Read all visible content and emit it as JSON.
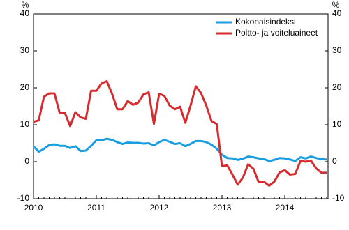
{
  "chart_data": {
    "type": "line",
    "y_label": "%",
    "y2_label": "%",
    "categories": [
      "2010",
      null,
      null,
      null,
      null,
      null,
      null,
      null,
      null,
      null,
      null,
      null,
      "2011",
      null,
      null,
      null,
      null,
      null,
      null,
      null,
      null,
      null,
      null,
      null,
      "2012",
      null,
      null,
      null,
      null,
      null,
      null,
      null,
      null,
      null,
      null,
      null,
      "2013",
      null,
      null,
      null,
      null,
      null,
      null,
      null,
      null,
      null,
      null,
      null,
      "2014",
      null,
      null,
      null,
      null,
      null,
      null,
      null,
      null
    ],
    "series": [
      {
        "name": "Kokonaisindeksi",
        "color": "#1a9ee0",
        "values": [
          4.2,
          2.7,
          3.5,
          4.5,
          4.7,
          4.3,
          4.3,
          3.7,
          4.2,
          2.9,
          3.0,
          4.3,
          5.8,
          5.8,
          6.2,
          5.9,
          5.3,
          4.8,
          5.2,
          5.1,
          5.1,
          4.9,
          5.0,
          4.4,
          5.3,
          5.9,
          5.4,
          4.8,
          5.0,
          4.2,
          4.8,
          5.6,
          5.6,
          5.3,
          4.6,
          3.5,
          1.9,
          1.0,
          0.9,
          0.5,
          0.8,
          1.4,
          1.2,
          0.9,
          0.7,
          0.2,
          0.5,
          1.0,
          0.9,
          0.6,
          0.2,
          1.2,
          0.9,
          1.4,
          1.0,
          0.7,
          0.6
        ]
      },
      {
        "name": "Poltto- ja voiteluaineet",
        "color": "#d62b2f",
        "values": [
          10.8,
          11.2,
          17.6,
          18.5,
          18.5,
          13.2,
          13.2,
          9.6,
          13.4,
          12.0,
          11.6,
          19.2,
          19.2,
          21.2,
          21.8,
          18.4,
          14.2,
          14.2,
          16.4,
          15.4,
          16.0,
          18.2,
          18.8,
          10.2,
          18.4,
          17.8,
          15.2,
          14.2,
          14.9,
          10.5,
          15.2,
          20.4,
          18.6,
          15.2,
          11.0,
          10.2,
          -1.2,
          -1.0,
          -3.5,
          -6.2,
          -4.3,
          -0.7,
          -1.9,
          -5.5,
          -5.4,
          -6.5,
          -5.4,
          -2.9,
          -2.3,
          -3.5,
          -3.3,
          0.2,
          0.0,
          0.3,
          -1.8,
          -3.0,
          -3.0
        ]
      }
    ],
    "ylim": [
      -10,
      40
    ],
    "yticks": [
      -10,
      0,
      10,
      20,
      30,
      40
    ],
    "y2lim": [
      -10,
      40
    ],
    "y2ticks": [
      -10,
      0,
      10,
      20,
      30,
      40
    ],
    "legend": "top-right"
  }
}
